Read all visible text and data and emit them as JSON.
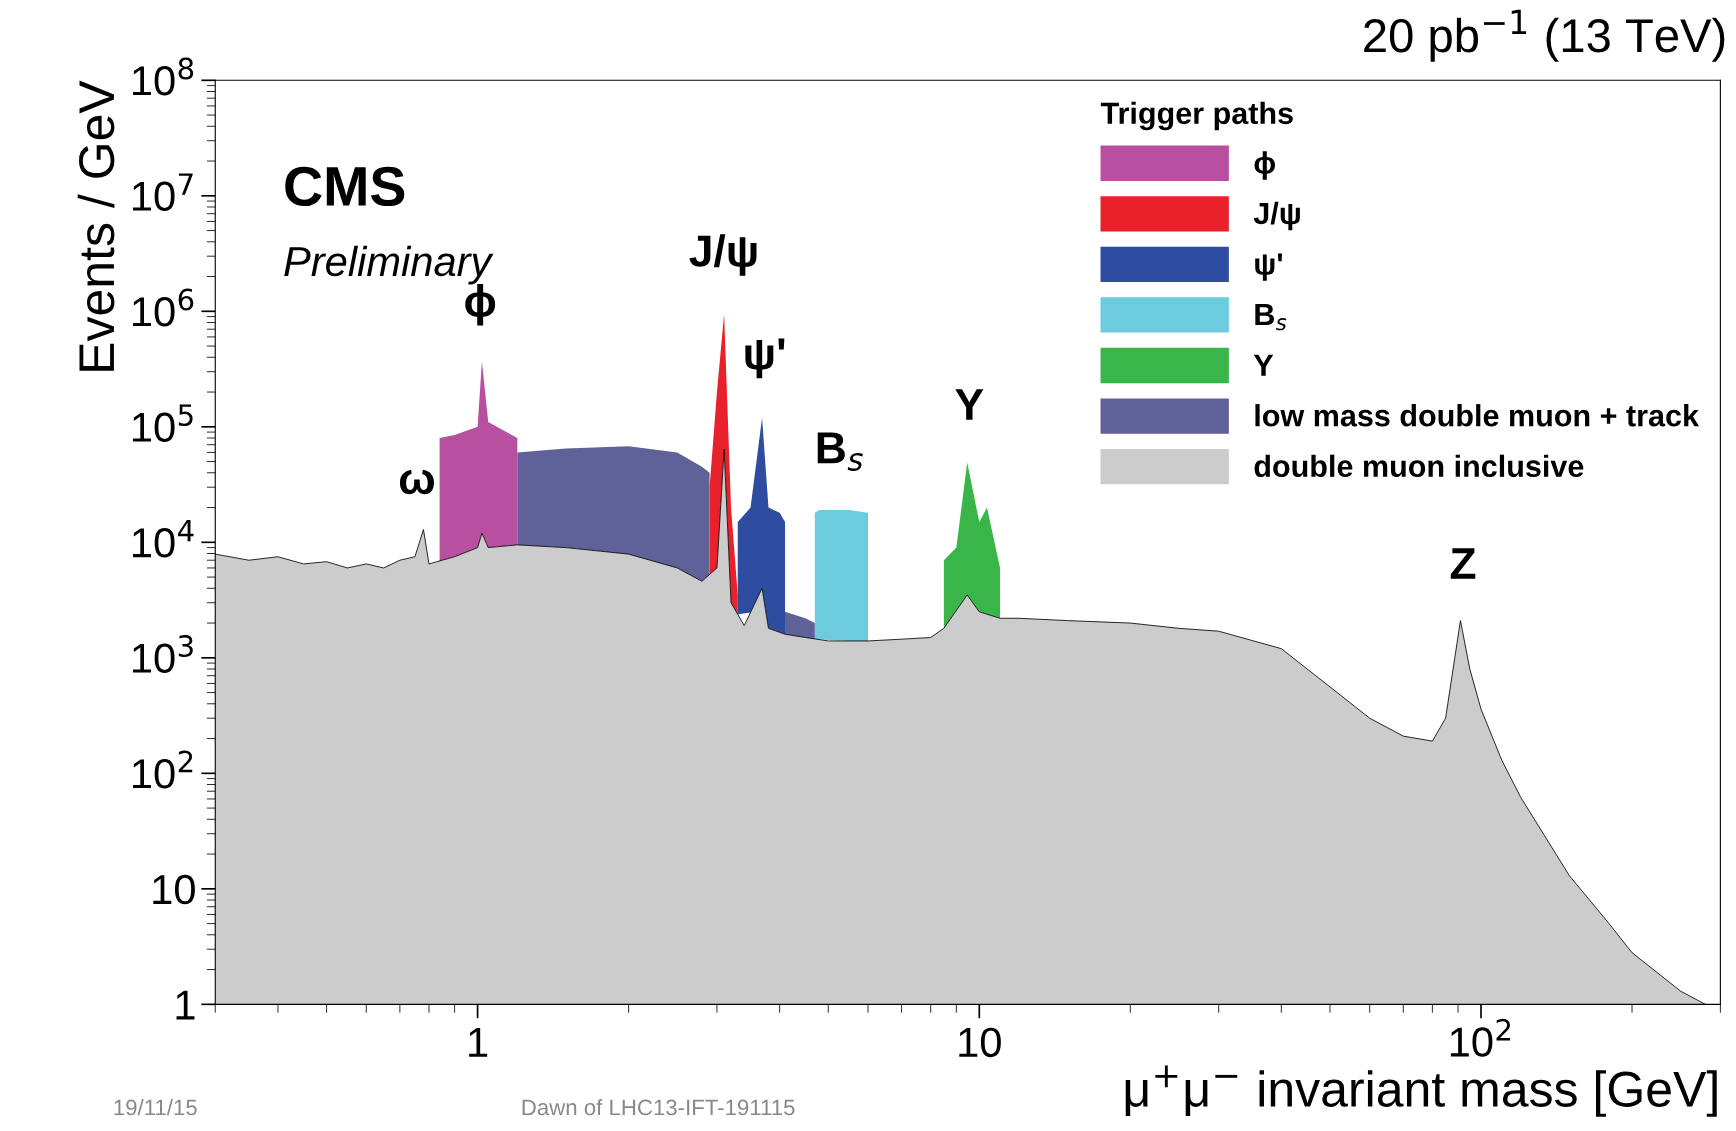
{
  "chart_data": {
    "type": "area",
    "xlabel": "μ$^{+}$μ$^{−}$ invariant mass [GeV]",
    "ylabel": "Events / GeV",
    "legend_title": "Trigger paths",
    "legend": "top right",
    "grid": false,
    "log": "xy",
    "xlim": [
      0.3,
      300
    ],
    "xticks": [
      1,
      10,
      {
        "value": 100,
        "label": "10$^{2}$"
      }
    ],
    "ylim": [
      1,
      100000000
    ],
    "yticks": [
      1,
      10,
      {
        "value": 100,
        "label": "10$^{2}$"
      },
      {
        "value": 1000,
        "label": "10$^{3}$"
      },
      {
        "value": 10000,
        "label": "10$^{4}$"
      },
      {
        "value": 100000,
        "label": "10$^{5}$"
      },
      {
        "value": 1000000,
        "label": "10$^{6}$"
      },
      {
        "value": 10000000,
        "label": "10$^{7}$"
      },
      {
        "value": 100000000,
        "label": "10$^{8}$"
      }
    ],
    "series": [
      {
        "name": "ϕ",
        "color": "#b94fa0",
        "x": [
          0.84,
          0.9,
          1.0,
          1.02,
          1.05,
          1.2
        ],
        "values": [
          80000,
          85000,
          100000,
          370000,
          110000,
          80000
        ]
      },
      {
        "name": "J/ψ",
        "color": "#e8212a",
        "x": [
          2.9,
          3.0,
          3.1,
          3.2,
          3.3
        ],
        "values": [
          30000,
          200000,
          950000,
          20000,
          3500
        ]
      },
      {
        "name": "ψ'",
        "color": "#2f4da0",
        "x": [
          3.3,
          3.5,
          3.69,
          3.8,
          4.0,
          4.1
        ],
        "values": [
          15000,
          20000,
          120000,
          20000,
          18000,
          15000
        ]
      },
      {
        "name": "B$_{s}$",
        "color": "#6ccbdc",
        "x": [
          4.7,
          4.8,
          5.5,
          6.0
        ],
        "values": [
          18000,
          19000,
          19000,
          18000
        ]
      },
      {
        "name": "Υ",
        "color": "#3ab54a",
        "x": [
          8.5,
          9.0,
          9.46,
          10.0,
          10.36,
          11.0
        ],
        "values": [
          7000,
          9000,
          49000,
          15000,
          20000,
          6000
        ]
      },
      {
        "name": "low mass double muon + track",
        "color": "#5f6199",
        "x": [
          1.2,
          1.5,
          2.0,
          2.5,
          2.8,
          2.9,
          3.0,
          4.1,
          4.5,
          4.7
        ],
        "values": [
          60000,
          65000,
          68000,
          60000,
          45000,
          40000,
          null,
          2500,
          2200,
          2000
        ]
      },
      {
        "name": "double muon inclusive",
        "color": "#cccccc",
        "x": [
          0.3,
          0.35,
          0.4,
          0.45,
          0.5,
          0.55,
          0.6,
          0.65,
          0.7,
          0.75,
          0.78,
          0.8,
          0.85,
          0.9,
          1.0,
          1.02,
          1.05,
          1.2,
          1.5,
          2.0,
          2.5,
          2.8,
          3.0,
          3.1,
          3.2,
          3.4,
          3.69,
          3.8,
          4.1,
          4.5,
          5.0,
          6.0,
          7.0,
          8.0,
          8.5,
          9.46,
          10.0,
          11.0,
          12,
          15,
          20,
          25,
          30,
          40,
          50,
          60,
          70,
          80,
          85,
          91,
          95,
          100,
          110,
          120,
          150,
          180,
          200,
          250,
          280
        ],
        "values": [
          7900,
          7000,
          7500,
          6500,
          6800,
          6000,
          6500,
          6000,
          7000,
          7500,
          12900,
          6500,
          7000,
          7500,
          9000,
          12000,
          9000,
          9500,
          9000,
          7900,
          6000,
          4600,
          6000,
          64000,
          3000,
          1900,
          4000,
          1800,
          1600,
          1500,
          1400,
          1400,
          1450,
          1500,
          1800,
          3500,
          2500,
          2200,
          2200,
          2100,
          2000,
          1800,
          1700,
          1200,
          560,
          300,
          210,
          190,
          300,
          2100,
          800,
          360,
          130,
          62,
          13,
          5,
          2.8,
          1.3,
          1
        ]
      }
    ],
    "annotations": [
      "CMS",
      "Preliminary",
      "20 pb$^{−1}$ (13 TeV)",
      "19/11/15",
      "Dawn of LHC13-IFT-191115",
      "ω",
      "ϕ",
      "J/ψ",
      "ψ'",
      "B$_{s}$",
      "Υ",
      "Z"
    ]
  }
}
